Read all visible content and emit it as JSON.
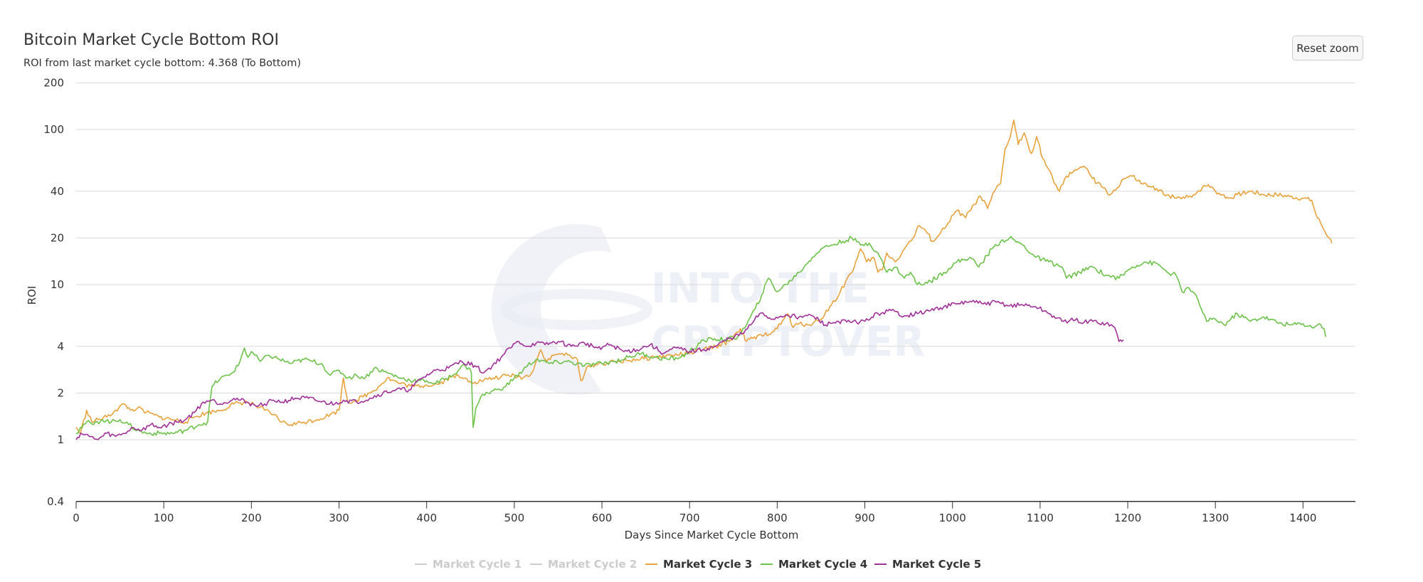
{
  "header": {
    "title": "Bitcoin Market Cycle Bottom ROI",
    "subtitle": "ROI from last market cycle bottom: 4.368 (To Bottom)",
    "reset_zoom_label": "Reset zoom"
  },
  "watermark": {
    "line1": "INTO THE",
    "line2": "CRYPTOVERSE"
  },
  "colors": {
    "cycle3": "#E8A23C",
    "cycle4": "#6CC24A",
    "cycle5": "#A0309A",
    "hidden": "#cccccc",
    "grid": "#d9d9d9",
    "axis": "#333333"
  },
  "legend": [
    {
      "label": "Market Cycle 1",
      "visible": false
    },
    {
      "label": "Market Cycle 2",
      "visible": false
    },
    {
      "label": "Market Cycle 3",
      "visible": true
    },
    {
      "label": "Market Cycle 4",
      "visible": true
    },
    {
      "label": "Market Cycle 5",
      "visible": true
    }
  ],
  "chart_data": {
    "type": "line",
    "title": "Bitcoin Market Cycle Bottom ROI",
    "subtitle": "ROI from last market cycle bottom: 4.368 (To Bottom)",
    "xlabel": "Days Since Market Cycle Bottom",
    "ylabel": "ROI",
    "yscale": "log",
    "ylim": [
      0.4,
      200
    ],
    "xlim": [
      0,
      1450
    ],
    "y_ticks": [
      0.4,
      1,
      2,
      4,
      10,
      20,
      40,
      100,
      200
    ],
    "y_tick_labels": [
      "0.4",
      "1",
      "2",
      "4",
      "10",
      "20",
      "40",
      "100",
      "200"
    ],
    "x_ticks": [
      0,
      100,
      200,
      300,
      400,
      500,
      600,
      700,
      800,
      900,
      1000,
      1100,
      1200,
      1300,
      1400
    ],
    "x_tick_labels": [
      "0",
      "100",
      "200",
      "300",
      "400",
      "500",
      "600",
      "700",
      "800",
      "900",
      "1000",
      "1100",
      "1200",
      "1300",
      "1400"
    ],
    "grid": true,
    "legend_position": "bottom-center",
    "series": [
      {
        "name": "Market Cycle 1",
        "visible": false,
        "x": [],
        "values": []
      },
      {
        "name": "Market Cycle 2",
        "visible": false,
        "x": [],
        "values": []
      },
      {
        "name": "Market Cycle 3",
        "visible": true,
        "x": [
          0,
          5,
          12,
          18,
          25,
          35,
          45,
          55,
          62,
          70,
          80,
          95,
          110,
          125,
          135,
          150,
          165,
          180,
          195,
          205,
          215,
          225,
          235,
          245,
          260,
          275,
          290,
          300,
          305,
          310,
          320,
          335,
          345,
          355,
          370,
          385,
          400,
          415,
          430,
          440,
          455,
          470,
          485,
          500,
          510,
          520,
          530,
          537,
          545,
          555,
          565,
          572,
          576,
          585,
          600,
          620,
          640,
          660,
          680,
          700,
          715,
          730,
          745,
          758,
          765,
          772,
          785,
          800,
          812,
          818,
          825,
          835,
          850,
          860,
          870,
          880,
          888,
          895,
          902,
          910,
          915,
          920,
          925,
          935,
          945,
          955,
          962,
          970,
          977,
          985,
          995,
          1005,
          1015,
          1025,
          1032,
          1040,
          1048,
          1055,
          1060,
          1066,
          1070,
          1075,
          1082,
          1090,
          1096,
          1103,
          1110,
          1116,
          1122,
          1130,
          1140,
          1150,
          1158,
          1165,
          1172,
          1180,
          1188,
          1195,
          1205,
          1215,
          1225,
          1235,
          1245,
          1255,
          1265,
          1275,
          1285,
          1292,
          1300,
          1308,
          1315,
          1325,
          1340,
          1355,
          1370,
          1385,
          1400,
          1410,
          1415,
          1420,
          1425,
          1430,
          1433
        ],
        "values": [
          1.2,
          1.1,
          1.55,
          1.3,
          1.35,
          1.4,
          1.55,
          1.7,
          1.55,
          1.6,
          1.5,
          1.4,
          1.35,
          1.3,
          1.4,
          1.5,
          1.55,
          1.7,
          1.75,
          1.65,
          1.55,
          1.45,
          1.3,
          1.25,
          1.3,
          1.35,
          1.45,
          1.55,
          2.5,
          1.75,
          1.8,
          2.0,
          2.2,
          2.5,
          2.3,
          2.2,
          2.25,
          2.3,
          2.6,
          2.5,
          2.35,
          2.45,
          2.55,
          2.6,
          2.5,
          2.7,
          3.8,
          3.2,
          3.5,
          3.6,
          3.4,
          3.3,
          2.4,
          3.0,
          3.1,
          3.2,
          3.3,
          3.4,
          3.5,
          3.6,
          3.8,
          4.0,
          4.3,
          5.2,
          4.3,
          4.5,
          4.7,
          5.2,
          6.5,
          5.3,
          5.6,
          5.5,
          6.0,
          7.2,
          8.5,
          11,
          13,
          17,
          14,
          15,
          12,
          12.5,
          16,
          14,
          17,
          20,
          24,
          22,
          19,
          21,
          25,
          30,
          27,
          33,
          37,
          31,
          40,
          45,
          75,
          90,
          115,
          80,
          95,
          70,
          90,
          65,
          55,
          45,
          40,
          50,
          55,
          58,
          50,
          45,
          42,
          38,
          42,
          48,
          50,
          45,
          43,
          40,
          38,
          36,
          36,
          38,
          42,
          44,
          40,
          38,
          36,
          38,
          40,
          38,
          38,
          37,
          36,
          35,
          28,
          25,
          22,
          20,
          18.5
        ]
      },
      {
        "name": "Market Cycle 4",
        "visible": true,
        "x": [
          0,
          5,
          12,
          20,
          30,
          40,
          50,
          60,
          70,
          80,
          95,
          110,
          125,
          140,
          150,
          155,
          165,
          175,
          185,
          192,
          196,
          200,
          210,
          220,
          232,
          245,
          260,
          270,
          280,
          290,
          300,
          310,
          320,
          330,
          340,
          355,
          370,
          385,
          400,
          410,
          420,
          430,
          440,
          448,
          451,
          453,
          456,
          462,
          470,
          480,
          490,
          500,
          510,
          515,
          525,
          540,
          560,
          580,
          600,
          615,
          630,
          645,
          660,
          675,
          690,
          700,
          712,
          725,
          740,
          755,
          765,
          775,
          782,
          790,
          800,
          810,
          825,
          840,
          850,
          862,
          875,
          885,
          895,
          905,
          915,
          925,
          935,
          945,
          952,
          960,
          975,
          990,
          1005,
          1020,
          1030,
          1045,
          1055,
          1065,
          1080,
          1095,
          1110,
          1125,
          1130,
          1145,
          1160,
          1175,
          1190,
          1205,
          1220,
          1235,
          1245,
          1255,
          1262,
          1270,
          1280,
          1290,
          1300,
          1310,
          1325,
          1340,
          1355,
          1370,
          1385,
          1400,
          1410,
          1418,
          1424,
          1426
        ],
        "values": [
          1.1,
          1.2,
          1.3,
          1.25,
          1.35,
          1.3,
          1.35,
          1.25,
          1.15,
          1.1,
          1.1,
          1.1,
          1.15,
          1.25,
          1.3,
          2.2,
          2.5,
          2.6,
          3.0,
          3.9,
          3.4,
          3.7,
          3.2,
          3.5,
          3.3,
          3.1,
          3.3,
          3.2,
          3.1,
          2.6,
          2.8,
          2.5,
          2.6,
          2.5,
          2.9,
          2.7,
          2.5,
          2.4,
          2.4,
          2.3,
          2.45,
          2.6,
          3.0,
          2.9,
          2.7,
          1.2,
          1.6,
          1.9,
          2.0,
          2.1,
          2.2,
          2.5,
          2.8,
          3.0,
          3.3,
          3.1,
          3.2,
          3.0,
          3.1,
          3.2,
          3.4,
          3.6,
          3.4,
          3.3,
          3.4,
          3.7,
          4.2,
          4.5,
          4.4,
          4.6,
          5.5,
          7.0,
          8.5,
          11,
          9.0,
          10,
          12,
          15,
          17,
          18,
          19,
          20,
          18,
          18.5,
          16,
          12,
          13,
          11,
          12,
          10,
          10.5,
          12,
          14,
          15,
          13,
          17,
          19,
          20,
          18,
          15,
          14,
          13,
          11,
          12,
          13,
          11.5,
          11,
          13,
          14,
          13.5,
          12,
          11.5,
          9,
          9.5,
          8.0,
          5.8,
          6.0,
          5.5,
          6.5,
          5.8,
          6.2,
          5.7,
          5.5,
          5.6,
          5.3,
          5.6,
          5.2,
          4.6
        ]
      },
      {
        "name": "Market Cycle 5",
        "visible": true,
        "x": [
          0,
          5,
          15,
          25,
          35,
          45,
          55,
          65,
          75,
          85,
          95,
          105,
          115,
          125,
          135,
          145,
          155,
          165,
          180,
          195,
          205,
          215,
          225,
          235,
          250,
          265,
          280,
          295,
          305,
          320,
          335,
          350,
          365,
          380,
          395,
          410,
          425,
          440,
          455,
          465,
          475,
          485,
          495,
          505,
          515,
          525,
          535,
          550,
          565,
          580,
          595,
          610,
          625,
          640,
          655,
          670,
          685,
          700,
          715,
          730,
          745,
          760,
          770,
          780,
          795,
          810,
          825,
          840,
          855,
          870,
          885,
          900,
          915,
          930,
          945,
          960,
          975,
          990,
          1005,
          1020,
          1035,
          1050,
          1065,
          1080,
          1095,
          1110,
          1125,
          1140,
          1150,
          1160,
          1175,
          1185,
          1190,
          1195
        ],
        "values": [
          1.0,
          1.1,
          1.05,
          1.0,
          1.1,
          1.05,
          1.1,
          1.2,
          1.15,
          1.25,
          1.2,
          1.25,
          1.3,
          1.35,
          1.5,
          1.75,
          1.8,
          1.7,
          1.85,
          1.75,
          1.65,
          1.7,
          1.8,
          1.75,
          1.85,
          1.85,
          1.75,
          1.7,
          1.8,
          1.75,
          1.85,
          2.0,
          2.1,
          2.1,
          2.5,
          2.8,
          2.9,
          3.2,
          3.0,
          2.7,
          3.0,
          3.4,
          3.9,
          4.3,
          4.0,
          4.2,
          4.1,
          4.3,
          4.0,
          4.2,
          3.9,
          4.1,
          3.7,
          3.8,
          4.1,
          3.6,
          3.9,
          3.7,
          3.8,
          4.0,
          4.5,
          4.8,
          5.5,
          6.5,
          6.0,
          6.4,
          6.2,
          6.3,
          5.5,
          5.8,
          5.7,
          5.8,
          6.5,
          6.8,
          6.3,
          6.5,
          6.8,
          7.2,
          7.5,
          7.8,
          7.5,
          7.7,
          7.3,
          7.4,
          7.2,
          6.5,
          5.8,
          5.9,
          5.7,
          5.8,
          5.6,
          5.3,
          4.3,
          4.4
        ]
      }
    ]
  }
}
